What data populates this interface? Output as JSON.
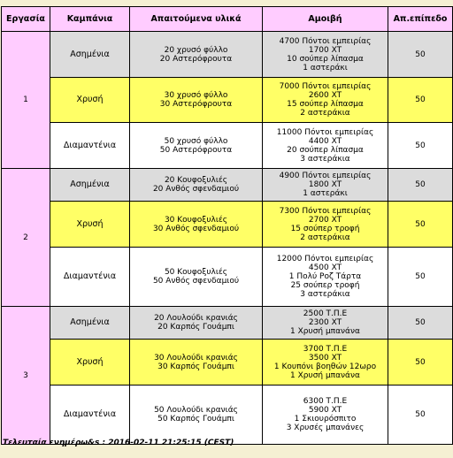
{
  "headers": [
    "Εργασία",
    "Καμπάνια",
    "Απαιτούμενα υλικά",
    "Αμοιβή",
    "Απ.επίπεδο"
  ],
  "groups": [
    {
      "task": "1",
      "rows": [
        {
          "campaign": "Ασημένια",
          "materials": [
            "20 χρυσό φύλλο",
            "20 Αστερόφρουτα"
          ],
          "reward": [
            "4700 Πόντοι εμπειρίας",
            "1700 XT",
            "10 σούπερ λίπασμα",
            "1 αστεράκι"
          ],
          "level": "50"
        },
        {
          "campaign": "Χρυσή",
          "materials": [
            "30 χρυσό φύλλο",
            "30 Αστερόφρουτα"
          ],
          "reward": [
            "7000 Πόντοι εμπειρίας",
            "2600 XT",
            "15 σούπερ λίπασμα",
            "2 αστεράκια"
          ],
          "level": "50"
        },
        {
          "campaign": "Διαμαντένια",
          "materials": [
            "50 χρυσό φύλλο",
            "50 Αστερόφρουτα"
          ],
          "reward": [
            "11000 Πόντοι εμπειρίας",
            "4400 XT",
            "20 σούπερ λίπασμα",
            "3 αστεράκια"
          ],
          "level": "50"
        }
      ]
    },
    {
      "task": "2",
      "rows": [
        {
          "campaign": "Ασημένια",
          "materials": [
            "20 Κουφοξυλιές",
            "20 Ανθός σφενδαμιού"
          ],
          "reward": [
            "4900 Πόντοι εμπειρίας",
            "1800 XT",
            "1 αστεράκι"
          ],
          "level": "50"
        },
        {
          "campaign": "Χρυσή",
          "materials": [
            "30 Κουφοξυλιές",
            "30 Ανθός σφενδαμιού"
          ],
          "reward": [
            "7300 Πόντοι εμπειρίας",
            "2700 XT",
            "15 σούπερ τροφή",
            "2 αστεράκια"
          ],
          "level": "50"
        },
        {
          "campaign": "Διαμαντένια",
          "materials": [
            "50 Κουφοξυλιές",
            "50 Ανθός σφενδαμιού"
          ],
          "reward": [
            "12000 Πόντοι εμπειρίας",
            "4500 XT",
            "1 Πολύ Ροζ Τάρτα",
            "25 σούπερ τροφή",
            "3 αστεράκια"
          ],
          "level": "50"
        }
      ]
    },
    {
      "task": "3",
      "rows": [
        {
          "campaign": "Ασημένια",
          "materials": [
            "20 Λουλούδι κρανιάς",
            "20 Καρπός Γουάμπι"
          ],
          "reward": [
            "2500 Τ.Π.Ε",
            "2300 XT",
            "1 Χρυσή μπανάνα"
          ],
          "level": "50"
        },
        {
          "campaign": "Χρυσή",
          "materials": [
            "30 Λουλούδι κρανιάς",
            "30 Καρπός Γουάμπι"
          ],
          "reward": [
            "3700 Τ.Π.Ε",
            "3500 XT",
            "1 Κουπόνι βοηθών 12ωρο",
            "1 Χρυσή μπανάνα"
          ],
          "level": "50"
        },
        {
          "campaign": "Διαμαντένια",
          "materials": [
            "50 Λουλούδι κρανιάς",
            "50 Καρπός Γουάμπι"
          ],
          "reward": [
            "6300 Τ.Π.Ε",
            "5900 XT",
            "1 Σκιουρόσπιτο",
            "3 Χρυσές μπανάνες"
          ],
          "level": "50"
        }
      ]
    }
  ],
  "footer": "Τελευταία ενημέρω&s : 2016-02-11 21:25:15 (CEST)"
}
